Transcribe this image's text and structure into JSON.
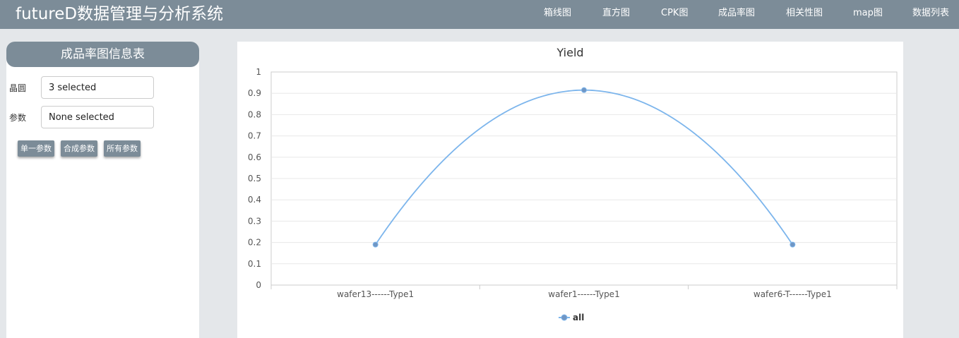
{
  "header": {
    "title": "futureD数据管理与分析系统",
    "nav": [
      {
        "label": "箱线图"
      },
      {
        "label": "直方图"
      },
      {
        "label": "CPK图"
      },
      {
        "label": "成品率图"
      },
      {
        "label": "相关性图"
      },
      {
        "label": "map图"
      },
      {
        "label": "数据列表"
      }
    ]
  },
  "sidebar": {
    "title": "成品率图信息表",
    "wafer": {
      "label": "晶圆",
      "value": "3 selected"
    },
    "param": {
      "label": "参数",
      "value": "None selected"
    },
    "buttons": [
      {
        "label": "单一参数"
      },
      {
        "label": "合成参数"
      },
      {
        "label": "所有参数"
      }
    ]
  },
  "colors": {
    "header_bg": "#7c8c98",
    "series": "#7cb5ec",
    "marker_fill": "#7096c4"
  },
  "chart_data": {
    "type": "line",
    "title": "Yield",
    "categories": [
      "wafer13------Type1",
      "wafer1------Type1",
      "wafer6-T------Type1"
    ],
    "series": [
      {
        "name": "all",
        "values": [
          0.19,
          0.915,
          0.19
        ]
      }
    ],
    "ylim": [
      0,
      1
    ],
    "yticks": [
      "0",
      "0.1",
      "0.2",
      "0.3",
      "0.4",
      "0.5",
      "0.6",
      "0.7",
      "0.8",
      "0.9",
      "1"
    ],
    "grid": true,
    "smooth": true,
    "legend": "bottom-center"
  }
}
